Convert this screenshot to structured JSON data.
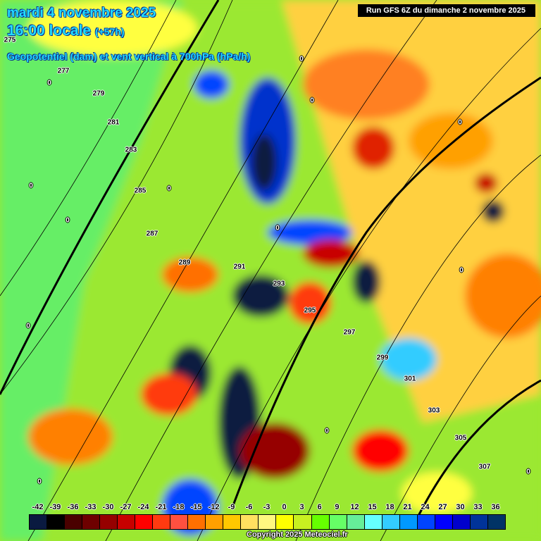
{
  "header": {
    "date": "mardi 4 novembre 2025",
    "time": "16:00 locale",
    "lead": "(+57h)",
    "parameter": "Geopotentiel (dam) et vent vertical à 700hPa (hPa/h)",
    "run": "Run GFS 6Z du dimanche 2 novembre 2025"
  },
  "contour_labels": [
    "275",
    "277",
    "279",
    "281",
    "283",
    "285",
    "287",
    "289",
    "291",
    "293",
    "295",
    "297",
    "299",
    "301",
    "303",
    "305",
    "307"
  ],
  "zero_label": "0",
  "legend": {
    "ticks": [
      "-42",
      "-39",
      "-36",
      "-33",
      "-30",
      "-27",
      "-24",
      "-21",
      "-18",
      "-15",
      "-12",
      "-9",
      "-6",
      "-3",
      "0",
      "3",
      "6",
      "9",
      "12",
      "15",
      "18",
      "21",
      "24",
      "27",
      "30",
      "33",
      "36"
    ],
    "colors": [
      "#0a1a40",
      "#000000",
      "#4a0000",
      "#6e0000",
      "#960000",
      "#c80000",
      "#ff0000",
      "#ff3a10",
      "#ff5040",
      "#ff7000",
      "#ffa000",
      "#ffc800",
      "#ffe060",
      "#fff880",
      "#ffff00",
      "#c8f020",
      "#66ff00",
      "#66ff66",
      "#66ee99",
      "#66ffff",
      "#33ccff",
      "#0099ff",
      "#0044ff",
      "#0000ff",
      "#0000cc",
      "#003399",
      "#003366"
    ]
  },
  "copyright": "Copyright 2025 Meteociel.fr"
}
